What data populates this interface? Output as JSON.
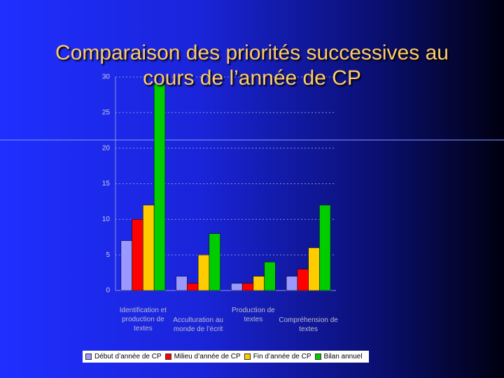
{
  "chart_data": {
    "type": "bar",
    "title": "Comparaison des priorités successives au cours de l’année de CP",
    "categories": [
      "Identification et production de textes",
      "Acculturation au monde de l’écrit",
      "Production de textes",
      "Compréhension de textes"
    ],
    "series": [
      {
        "name": "Début d’année de CP",
        "color": "#9999ff",
        "values": [
          7,
          2,
          1,
          2
        ]
      },
      {
        "name": "Milieu d’année de CP",
        "color": "#ff0000",
        "values": [
          10,
          1,
          1,
          3
        ]
      },
      {
        "name": "Fin d’année de CP",
        "color": "#ffcc00",
        "values": [
          12,
          5,
          2,
          6
        ]
      },
      {
        "name": "Bilan annuel",
        "color": "#00cc00",
        "values": [
          29,
          8,
          4,
          12
        ]
      }
    ],
    "ylim": [
      0,
      30
    ],
    "yticks": [
      0,
      5,
      10,
      15,
      20,
      25,
      30
    ],
    "grid": true
  }
}
